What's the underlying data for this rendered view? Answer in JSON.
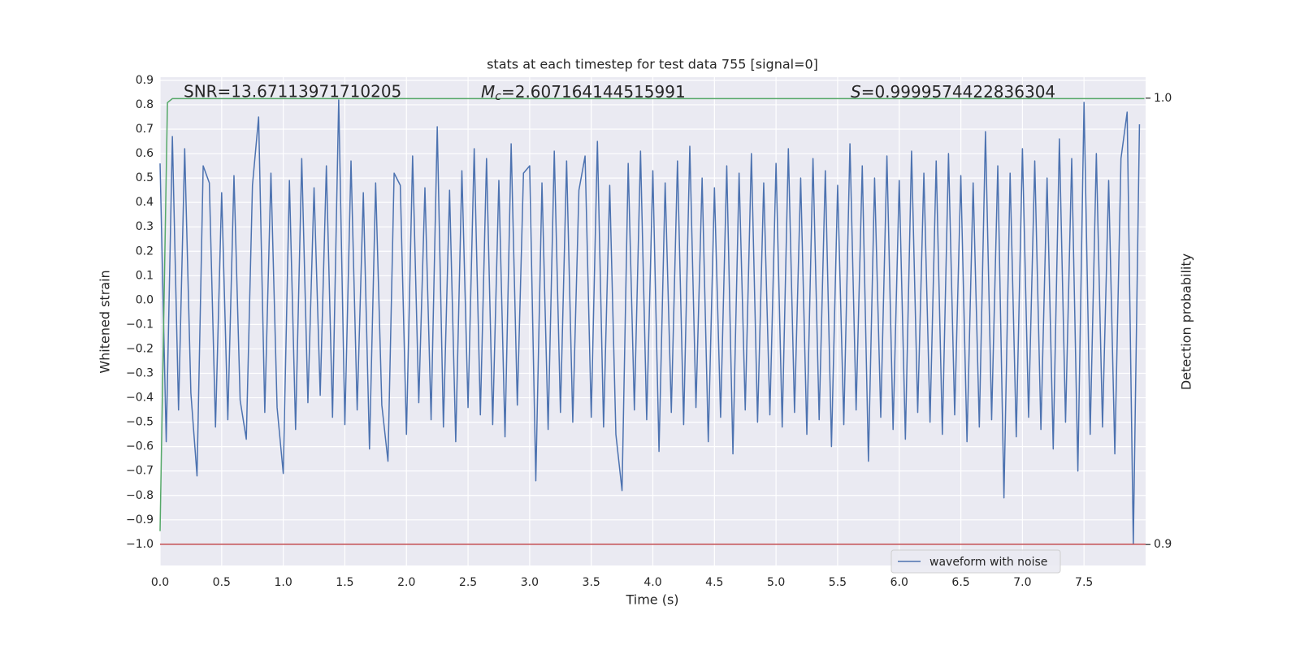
{
  "chart_data": {
    "type": "line",
    "title": "stats at each timestep for test data 755 [signal=0]",
    "xlabel": "Time (s)",
    "ylabel": "Whitened strain",
    "y2label": "Detection probability",
    "annotations": [
      {
        "text": "SNR=13.67113971710205"
      },
      {
        "symbol": "M",
        "sub": "c",
        "text": "=2.607164144515991"
      },
      {
        "symbol": "S",
        "text": "=0.9999574422836304"
      }
    ],
    "xlim": [
      0,
      8.0
    ],
    "xticks": [
      0.0,
      0.5,
      1.0,
      1.5,
      2.0,
      2.5,
      3.0,
      3.5,
      4.0,
      4.5,
      5.0,
      5.5,
      6.0,
      6.5,
      7.0,
      7.5
    ],
    "ylim": [
      -1.087,
      0.913
    ],
    "yticks": [
      -1.0,
      -0.9,
      -0.8,
      -0.7,
      -0.6,
      -0.5,
      -0.4,
      -0.3,
      -0.2,
      -0.1,
      0.0,
      0.1,
      0.2,
      0.3,
      0.4,
      0.5,
      0.6,
      0.7,
      0.8,
      0.9
    ],
    "y2lim": [
      0.8953,
      1.0047
    ],
    "y2ticks": [
      0.9,
      1.0
    ],
    "grid": true,
    "legend": "lower right",
    "hline": {
      "value": -1.0,
      "color": "#c44e52"
    },
    "x": [
      0,
      0.05,
      0.1,
      0.15,
      0.2,
      0.25,
      0.3,
      0.35,
      0.4,
      0.45,
      0.5,
      0.55,
      0.6,
      0.65,
      0.7,
      0.75,
      0.8,
      0.85,
      0.9,
      0.95,
      1,
      1.05,
      1.1,
      1.15,
      1.2,
      1.25,
      1.3,
      1.35,
      1.4,
      1.45,
      1.5,
      1.55,
      1.6,
      1.65,
      1.7,
      1.75,
      1.8,
      1.85,
      1.9,
      1.95,
      2,
      2.05,
      2.1,
      2.15,
      2.2,
      2.25,
      2.3,
      2.35,
      2.4,
      2.45,
      2.5,
      2.55,
      2.6,
      2.65,
      2.7,
      2.75,
      2.8,
      2.85,
      2.9,
      2.95,
      3,
      3.05,
      3.1,
      3.15,
      3.2,
      3.25,
      3.3,
      3.35,
      3.4,
      3.45,
      3.5,
      3.55,
      3.6,
      3.65,
      3.7,
      3.75,
      3.8,
      3.85,
      3.9,
      3.95,
      4,
      4.05,
      4.1,
      4.15,
      4.2,
      4.25,
      4.3,
      4.35,
      4.4,
      4.45,
      4.5,
      4.55,
      4.6,
      4.65,
      4.7,
      4.75,
      4.8,
      4.85,
      4.9,
      4.95,
      5,
      5.05,
      5.1,
      5.15,
      5.2,
      5.25,
      5.3,
      5.35,
      5.4,
      5.45,
      5.5,
      5.55,
      5.6,
      5.65,
      5.7,
      5.75,
      5.8,
      5.85,
      5.9,
      5.95,
      6,
      6.05,
      6.1,
      6.15,
      6.2,
      6.25,
      6.3,
      6.35,
      6.4,
      6.45,
      6.5,
      6.55,
      6.6,
      6.65,
      6.7,
      6.75,
      6.8,
      6.85,
      6.9,
      6.95,
      7,
      7.05,
      7.1,
      7.15,
      7.2,
      7.25,
      7.3,
      7.35,
      7.4,
      7.45,
      7.5,
      7.55,
      7.6,
      7.65,
      7.7,
      7.75,
      7.8,
      7.85,
      7.9,
      7.95
    ],
    "series": [
      {
        "name": "waveform with noise",
        "color": "#4c72b0",
        "values": [
          0.56,
          -0.58,
          0.67,
          -0.45,
          0.62,
          -0.38,
          -0.72,
          0.55,
          0.48,
          -0.52,
          0.44,
          -0.49,
          0.51,
          -0.41,
          -0.57,
          0.47,
          0.75,
          -0.46,
          0.52,
          -0.44,
          -0.71,
          0.49,
          -0.53,
          0.58,
          -0.42,
          0.46,
          -0.39,
          0.55,
          -0.48,
          0.82,
          -0.51,
          0.57,
          -0.45,
          0.44,
          -0.61,
          0.48,
          -0.43,
          -0.66,
          0.52,
          0.47,
          -0.55,
          0.59,
          -0.42,
          0.46,
          -0.49,
          0.71,
          -0.52,
          0.45,
          -0.58,
          0.53,
          -0.44,
          0.62,
          -0.47,
          0.58,
          -0.51,
          0.49,
          -0.56,
          0.64,
          -0.43,
          0.52,
          0.55,
          -0.74,
          0.48,
          -0.53,
          0.61,
          -0.46,
          0.57,
          -0.5,
          0.45,
          0.59,
          -0.48,
          0.65,
          -0.52,
          0.47,
          -0.55,
          -0.78,
          0.56,
          -0.45,
          0.61,
          -0.49,
          0.53,
          -0.62,
          0.48,
          -0.46,
          0.57,
          -0.51,
          0.63,
          -0.44,
          0.5,
          -0.58,
          0.46,
          -0.48,
          0.55,
          -0.63,
          0.52,
          -0.45,
          0.6,
          -0.5,
          0.48,
          -0.47,
          0.56,
          -0.52,
          0.62,
          -0.46,
          0.5,
          -0.55,
          0.58,
          -0.49,
          0.53,
          -0.6,
          0.47,
          -0.51,
          0.64,
          -0.45,
          0.55,
          -0.66,
          0.5,
          -0.48,
          0.59,
          -0.53,
          0.49,
          -0.57,
          0.61,
          -0.46,
          0.52,
          -0.5,
          0.57,
          -0.55,
          0.6,
          -0.47,
          0.51,
          -0.58,
          0.48,
          -0.52,
          0.69,
          -0.49,
          0.55,
          -0.81,
          0.52,
          -0.56,
          0.62,
          -0.48,
          0.57,
          -0.53,
          0.5,
          -0.61,
          0.66,
          -0.5,
          0.58,
          -0.7,
          0.81,
          -0.55,
          0.6,
          -0.52,
          0.49,
          -0.63,
          0.58,
          0.77,
          -1.0,
          0.72
        ]
      },
      {
        "color": "#55a868",
        "axis": "y2",
        "x": [
          0,
          0.06,
          0.1,
          7.99
        ],
        "values": [
          0.903,
          0.999,
          0.9999,
          0.9999
        ]
      }
    ]
  }
}
